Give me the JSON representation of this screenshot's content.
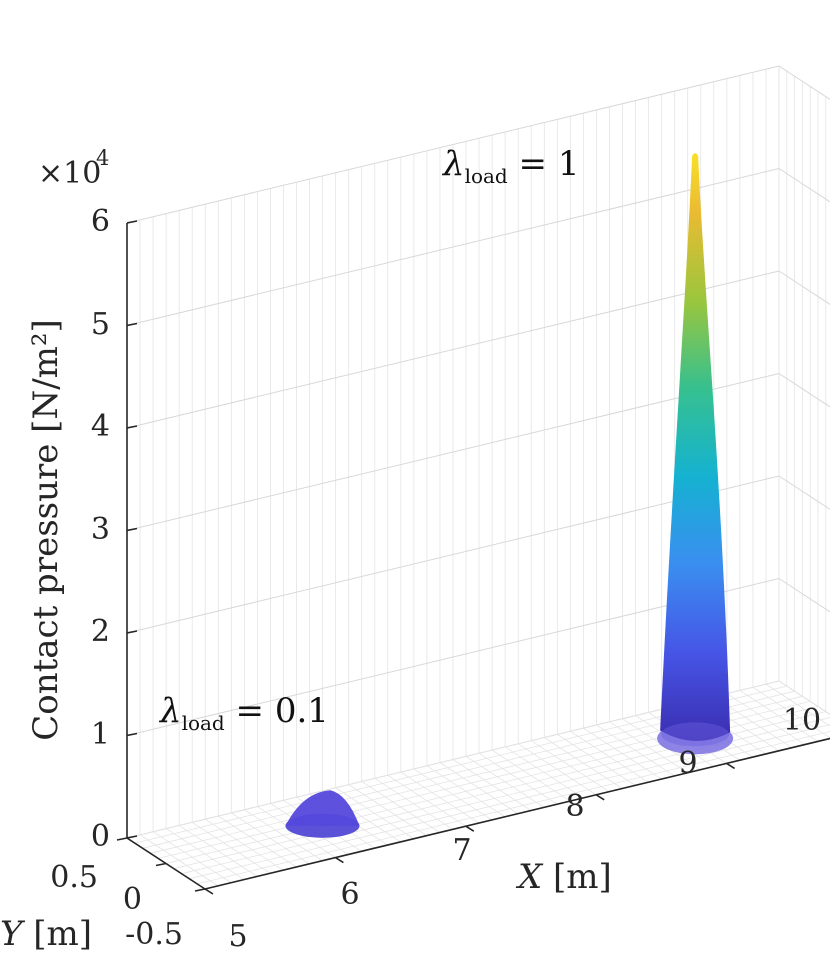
{
  "chart_data": {
    "type": "surface3d",
    "title": "",
    "zlabel": "Contact pressure [N/m²]",
    "xlabel": "X [m]",
    "ylabel": "Y [m]",
    "exponent_label": "×10^4",
    "xlim": [
      5,
      10
    ],
    "ylim": [
      -0.5,
      0.5
    ],
    "zlim": [
      0,
      60000
    ],
    "x_ticks": [
      "5",
      "6",
      "7",
      "8",
      "9",
      "10"
    ],
    "y_ticks": [
      "-0.5",
      "0",
      "0.5"
    ],
    "z_ticks": [
      "0",
      "1",
      "2",
      "3",
      "4",
      "5",
      "6"
    ],
    "grid": true,
    "colormap": "parula",
    "series": [
      {
        "name": "λ_load = 0.1",
        "x_center": 6.2,
        "y_center": 0.0,
        "peak": 2500
      },
      {
        "name": "λ_load = 1",
        "x_center": 9.05,
        "y_center": 0.0,
        "peak": 57000
      }
    ],
    "annotations": [
      {
        "symbol": "λ",
        "subscript": "load",
        "text": " = 1"
      },
      {
        "symbol": "λ",
        "subscript": "load",
        "text": " = 0.1"
      }
    ]
  }
}
